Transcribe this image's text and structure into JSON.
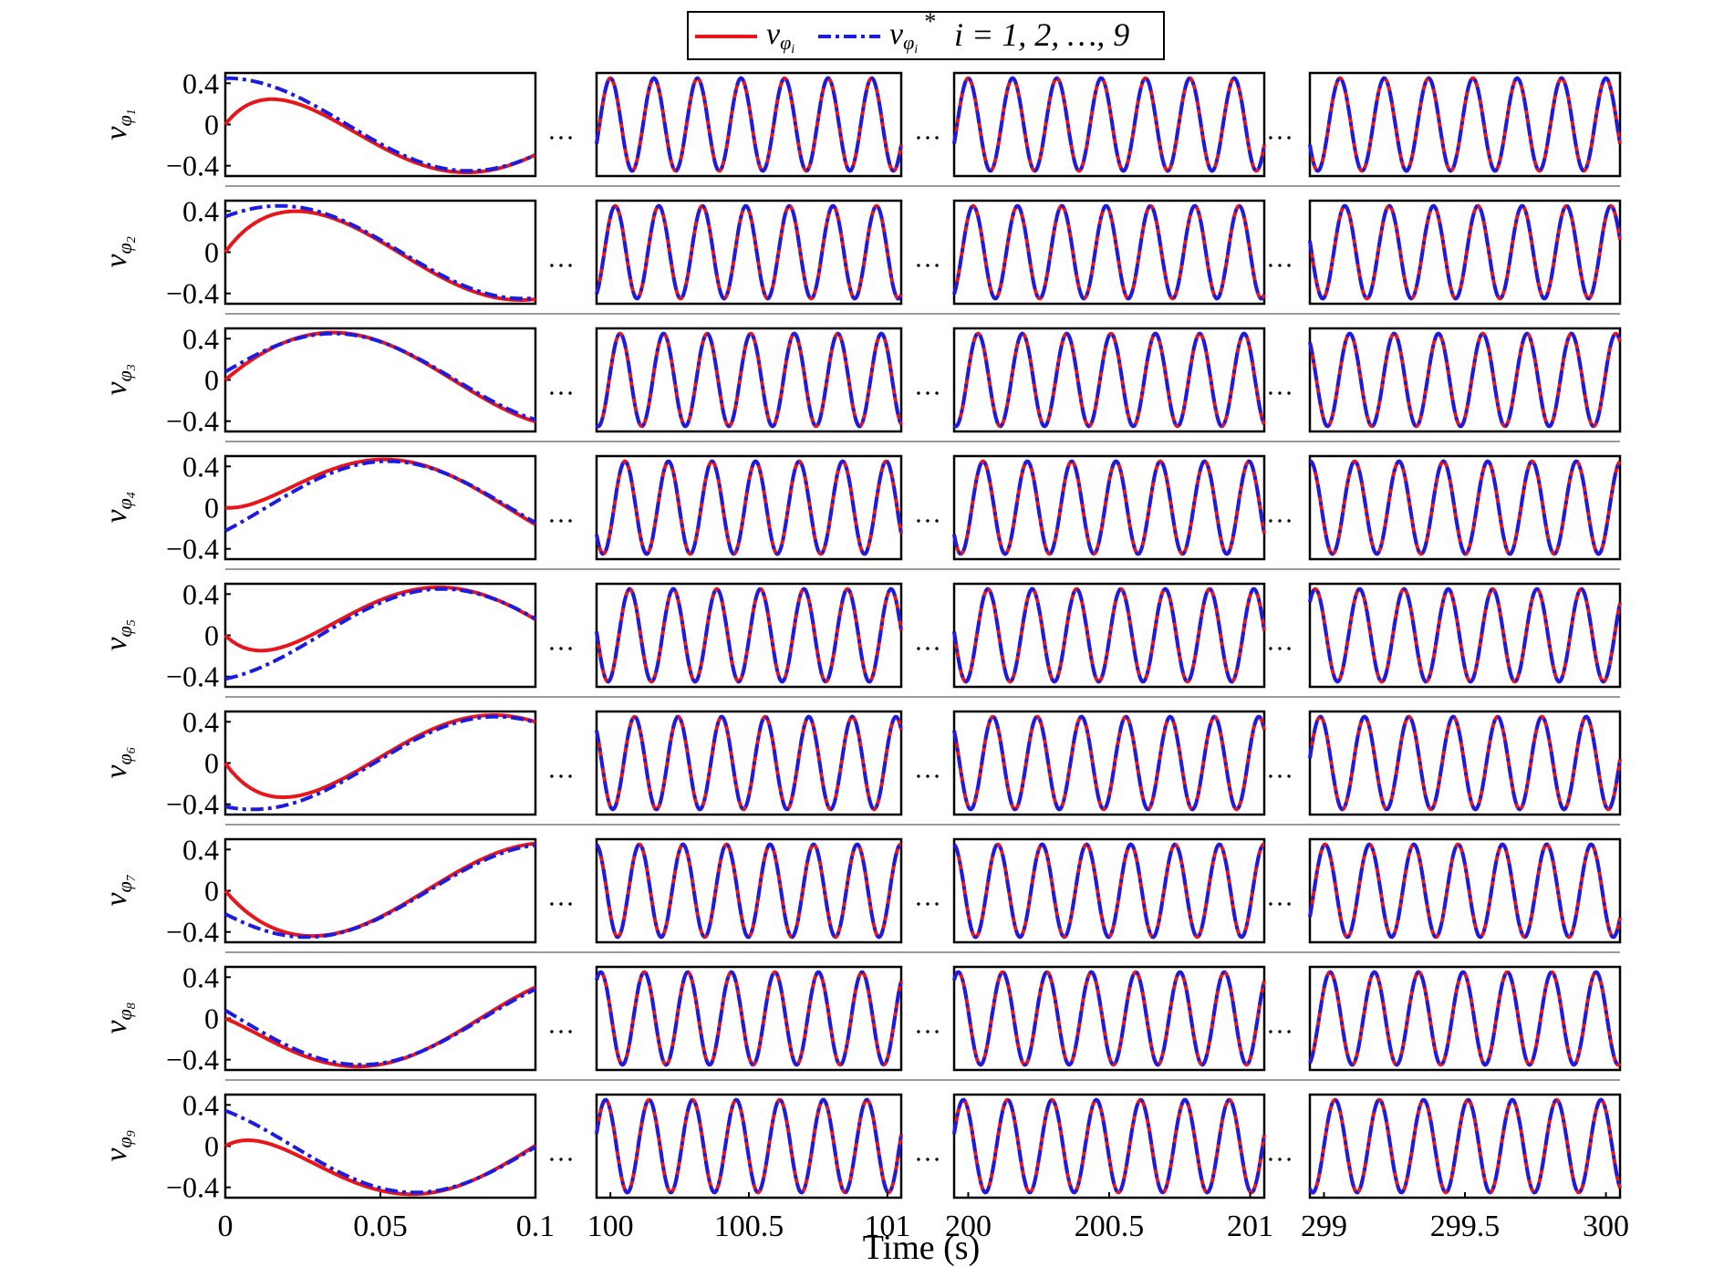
{
  "legend": {
    "actual_symbol": "v",
    "actual_sub": "φ",
    "actual_subsub": "i",
    "reference_symbol": "v",
    "reference_sub": "φ",
    "reference_subsub": "i",
    "reference_sup": "*",
    "index_text": "i = 1, 2, …, 9",
    "actual_color": "#e8151b",
    "reference_color": "#1c1ce0"
  },
  "ellipsis": "…",
  "xlabel": "Time (s)",
  "chart_data": {
    "type": "line",
    "title": "",
    "xlabel": "Time (s)",
    "ylim": [
      -0.5,
      0.5
    ],
    "yticks": [
      "0.4",
      "0",
      "−0.4"
    ],
    "ytick_values": [
      0.4,
      0,
      -0.4
    ],
    "grid": false,
    "legend_placement": "top-center",
    "time_windows": [
      {
        "xlim": [
          0,
          0.1
        ],
        "xticks": [
          "0",
          "0.05",
          "0.1"
        ],
        "xtick_values": [
          0,
          0.05,
          0.1
        ]
      },
      {
        "xlim": [
          99.95,
          101.05
        ],
        "xticks": [
          "100",
          "100.5",
          "101"
        ],
        "xtick_values": [
          100,
          100.5,
          101
        ]
      },
      {
        "xlim": [
          199.95,
          201.05
        ],
        "xticks": [
          "200",
          "200.5",
          "201"
        ],
        "xtick_values": [
          200,
          200.5,
          201
        ]
      },
      {
        "xlim": [
          298.95,
          300.05
        ],
        "xticks": [
          "299",
          "299.5",
          "300"
        ],
        "xtick_values": [
          299,
          299.5,
          300
        ]
      }
    ],
    "series_names": [
      "v_φi",
      "v_φi*"
    ],
    "signal_model": {
      "amplitude": 0.45,
      "frequency_hz": 6.36,
      "phase_step_rad": 0.698
    },
    "rows": [
      {
        "label": "v",
        "sub": "φ",
        "subsub": "1",
        "phase": 1.571,
        "initial_actual": 0.0
      },
      {
        "label": "v",
        "sub": "φ",
        "subsub": "2",
        "phase": 0.873,
        "initial_actual": 0.0
      },
      {
        "label": "v",
        "sub": "φ",
        "subsub": "3",
        "phase": 0.175,
        "initial_actual": 0.0
      },
      {
        "label": "v",
        "sub": "φ",
        "subsub": "4",
        "phase": -0.524,
        "initial_actual": 0.0
      },
      {
        "label": "v",
        "sub": "φ",
        "subsub": "5",
        "phase": -1.222,
        "initial_actual": 0.0
      },
      {
        "label": "v",
        "sub": "φ",
        "subsub": "6",
        "phase": -1.92,
        "initial_actual": 0.0
      },
      {
        "label": "v",
        "sub": "φ",
        "subsub": "7",
        "phase": -2.618,
        "initial_actual": 0.0
      },
      {
        "label": "v",
        "sub": "φ",
        "subsub": "8",
        "phase": 2.967,
        "initial_actual": 0.0
      },
      {
        "label": "v",
        "sub": "φ",
        "subsub": "9",
        "phase": 2.269,
        "initial_actual": 0.0
      }
    ]
  }
}
